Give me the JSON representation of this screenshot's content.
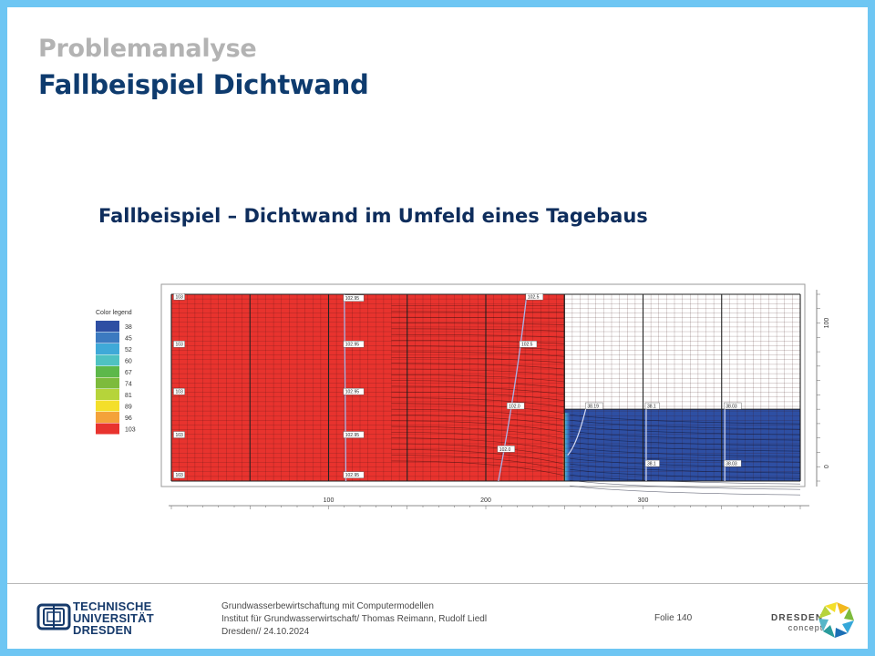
{
  "slide": {
    "supertitle": "Problemanalyse",
    "title": "Fallbeispiel Dichtwand",
    "subtitle": "Fallbeispiel – Dichtwand im Umfeld eines Tagebaus"
  },
  "legend": {
    "title": "Color legend",
    "items": [
      {
        "label": "38",
        "color": "#2e4fa3"
      },
      {
        "label": "45",
        "color": "#3c7ac0"
      },
      {
        "label": "52",
        "color": "#3fa9d8"
      },
      {
        "label": "60",
        "color": "#4fc2c2"
      },
      {
        "label": "67",
        "color": "#5db84a"
      },
      {
        "label": "74",
        "color": "#7dbb3c"
      },
      {
        "label": "81",
        "color": "#b6d43a"
      },
      {
        "label": "89",
        "color": "#f4df2a"
      },
      {
        "label": "96",
        "color": "#f4a23a"
      },
      {
        "label": "103",
        "color": "#e8332e"
      }
    ]
  },
  "model": {
    "x_ticks": [
      {
        "value": "100",
        "x": 100
      },
      {
        "value": "200",
        "x": 200
      },
      {
        "value": "300",
        "x": 300
      }
    ],
    "y_ticks": [
      {
        "value": "100",
        "y": 100
      },
      {
        "value": "0",
        "y": 0
      }
    ],
    "left_labels": [
      {
        "text": "103",
        "x": 2,
        "y": 118
      },
      {
        "text": "103",
        "x": 2,
        "y": 85
      },
      {
        "text": "103",
        "x": 2,
        "y": 52
      },
      {
        "text": "103",
        "x": 2,
        "y": 22
      },
      {
        "text": "103",
        "x": 2,
        "y": -6
      }
    ],
    "contour_labels_red": [
      {
        "text": "102.95",
        "x": 110,
        "y": 117
      },
      {
        "text": "102.95",
        "x": 110,
        "y": 85
      },
      {
        "text": "102.95",
        "x": 110,
        "y": 52
      },
      {
        "text": "102.95",
        "x": 110,
        "y": 22
      },
      {
        "text": "102.95",
        "x": 110,
        "y": -6
      },
      {
        "text": "102.5",
        "x": 226,
        "y": 118
      },
      {
        "text": "102.5",
        "x": 222,
        "y": 85
      },
      {
        "text": "102.0",
        "x": 214,
        "y": 42
      },
      {
        "text": "102.0",
        "x": 208,
        "y": 12
      }
    ],
    "contour_labels_blue": [
      {
        "text": "38.19",
        "x": 264,
        "y": 42
      },
      {
        "text": "38.1",
        "x": 302,
        "y": 42
      },
      {
        "text": "38.03",
        "x": 352,
        "y": 42
      },
      {
        "text": "38.1",
        "x": 302,
        "y": 2
      },
      {
        "text": "38.03",
        "x": 352,
        "y": 2
      }
    ]
  },
  "footer": {
    "line1": "Grundwasserbewirtschaftung mit Computermodellen",
    "line2": "Institut für Grundwasserwirtschaft/ Thomas Reimann, Rudolf Liedl",
    "line3": "Dresden// 24.10.2024",
    "folio": "Folie 140",
    "tud_line1": "TECHNISCHE",
    "tud_line2": "UNIVERSITÄT",
    "tud_line3": "DRESDEN",
    "dc_line1": "DRESDEN",
    "dc_line2": "concept"
  }
}
